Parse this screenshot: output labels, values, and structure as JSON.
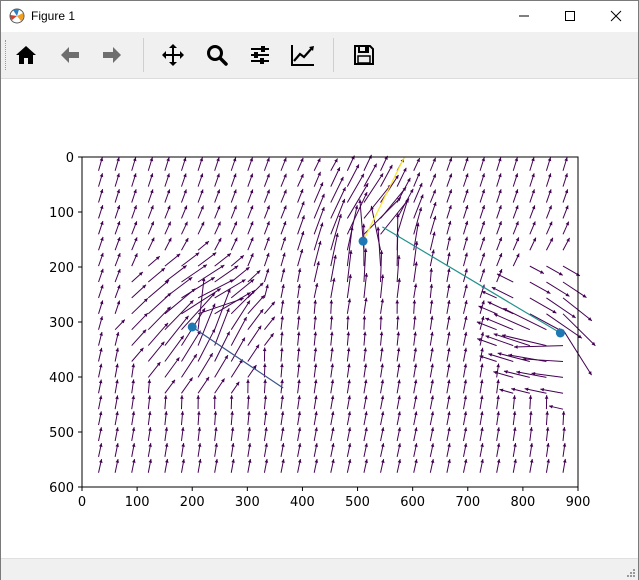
{
  "window": {
    "title": "Figure 1"
  },
  "titlebar_buttons": [
    "minimize-icon",
    "maximize-icon",
    "close-icon"
  ],
  "toolbar": {
    "buttons": [
      "home-icon",
      "back-arrow-icon",
      "forward-arrow-icon",
      "pan-move-icon",
      "zoom-magnifier-icon",
      "configure-subplots-icon",
      "edit-axis-icon",
      "save-floppy-icon"
    ]
  },
  "colors": {
    "quiver": "#440154",
    "scatter": "#1f77b4",
    "path_yellow": "#fde725",
    "path_teal": "#21918c",
    "path_navy": "#3b528b"
  },
  "chart_data": {
    "type": "quiver",
    "x_ticks": [
      "0",
      "100",
      "200",
      "300",
      "400",
      "500",
      "600",
      "700",
      "800",
      "900"
    ],
    "y_ticks": [
      "0",
      "100",
      "200",
      "300",
      "400",
      "500",
      "600"
    ],
    "xlim": [
      0,
      900
    ],
    "ylim": [
      600,
      0
    ],
    "y_inverted": true,
    "grid": false,
    "scatter_points": [
      {
        "x": 510,
        "y": 153
      },
      {
        "x": 200,
        "y": 309
      },
      {
        "x": 868,
        "y": 320
      }
    ],
    "path_segments": [
      {
        "color": "yellow",
        "x1": 510,
        "y1": 153,
        "x2": 585,
        "y2": 0
      },
      {
        "color": "teal",
        "x1": 868,
        "y1": 320,
        "x2": 545,
        "y2": 127
      },
      {
        "color": "navy",
        "x1": 200,
        "y1": 309,
        "x2": 365,
        "y2": 420
      }
    ],
    "arrow_grid": {
      "x_start": 30,
      "x_step": 30.1,
      "nx": 29,
      "y_start": 25,
      "y_step": 28.9,
      "ny": 20,
      "near_points": [
        {
          "x": 510,
          "y": 153,
          "dir": [
            1,
            -3
          ],
          "strength": 110
        },
        {
          "x": 200,
          "y": 309,
          "dir": [
            3,
            -1
          ],
          "strength": 90
        },
        {
          "x": 868,
          "y": 320,
          "dir": [
            -1,
            2
          ],
          "strength": 95
        }
      ]
    }
  }
}
